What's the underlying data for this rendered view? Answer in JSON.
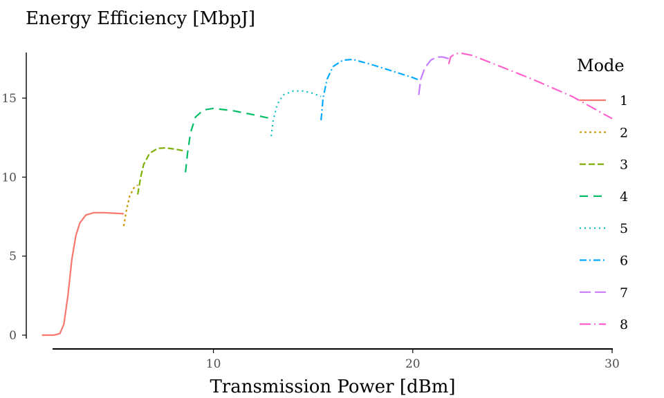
{
  "chart_data": {
    "type": "line",
    "title": "",
    "ylabel": "Energy Efficiency [MbpJ]",
    "xlabel": "Transmission Power [dBm]",
    "xlim": [
      1.4,
      30
    ],
    "ylim": [
      -0.85,
      17.8
    ],
    "x_ticks": [
      10,
      20,
      30
    ],
    "y_ticks": [
      0,
      5,
      10,
      15
    ],
    "grid": false,
    "legend": {
      "title": "Mode",
      "position": "right"
    },
    "series": [
      {
        "name": "1",
        "color": "#F8766D",
        "dash": "",
        "x": [
          1.4,
          2.0,
          2.3,
          2.5,
          2.7,
          2.9,
          3.1,
          3.3,
          3.6,
          4.0,
          4.5,
          5.0,
          5.5
        ],
        "y": [
          0,
          0,
          0.1,
          0.7,
          2.5,
          4.8,
          6.3,
          7.1,
          7.6,
          7.75,
          7.75,
          7.72,
          7.68
        ]
      },
      {
        "name": "2",
        "color": "#CD9600",
        "dash": "3,4",
        "x": [
          5.5,
          5.65,
          5.8,
          6.0,
          6.2
        ],
        "y": [
          6.9,
          8.0,
          8.8,
          9.3,
          9.5
        ]
      },
      {
        "name": "3",
        "color": "#7CAE00",
        "dash": "9,4",
        "x": [
          6.2,
          6.35,
          6.5,
          6.8,
          7.2,
          7.6,
          8.0,
          8.6
        ],
        "y": [
          8.9,
          10.0,
          10.8,
          11.5,
          11.82,
          11.85,
          11.78,
          11.65
        ]
      },
      {
        "name": "4",
        "color": "#00BE67",
        "dash": "12,8",
        "x": [
          8.6,
          8.7,
          8.85,
          9.1,
          9.5,
          10.0,
          11.0,
          12.0,
          12.9
        ],
        "y": [
          10.3,
          11.5,
          12.8,
          13.8,
          14.25,
          14.35,
          14.2,
          13.95,
          13.7
        ]
      },
      {
        "name": "5",
        "color": "#00BFC4",
        "dash": "2,5",
        "x": [
          12.9,
          13.0,
          13.2,
          13.5,
          14.0,
          14.5,
          15.0,
          15.4
        ],
        "y": [
          12.6,
          13.6,
          14.6,
          15.2,
          15.45,
          15.45,
          15.3,
          15.1
        ]
      },
      {
        "name": "6",
        "color": "#00A9FF",
        "dash": "10,4,2,4",
        "x": [
          15.4,
          15.5,
          15.7,
          16.0,
          16.5,
          17.0,
          18.0,
          19.0,
          20.0,
          20.3
        ],
        "y": [
          13.6,
          15.0,
          16.2,
          17.0,
          17.4,
          17.45,
          17.1,
          16.7,
          16.3,
          16.15
        ]
      },
      {
        "name": "7",
        "color": "#C77CFF",
        "dash": "16,6",
        "x": [
          20.3,
          20.4,
          20.6,
          20.9,
          21.2,
          21.5,
          21.8
        ],
        "y": [
          15.2,
          16.2,
          16.9,
          17.4,
          17.6,
          17.6,
          17.5
        ]
      },
      {
        "name": "8",
        "color": "#FF61CC",
        "dash": "16,5,2,5",
        "x": [
          21.8,
          21.9,
          22.1,
          22.4,
          23.0,
          24.0,
          25.0,
          26.0,
          27.0,
          28.0,
          29.0,
          30.0
        ],
        "y": [
          17.15,
          17.6,
          17.8,
          17.85,
          17.7,
          17.2,
          16.7,
          16.2,
          15.65,
          15.1,
          14.4,
          13.7
        ]
      }
    ]
  }
}
